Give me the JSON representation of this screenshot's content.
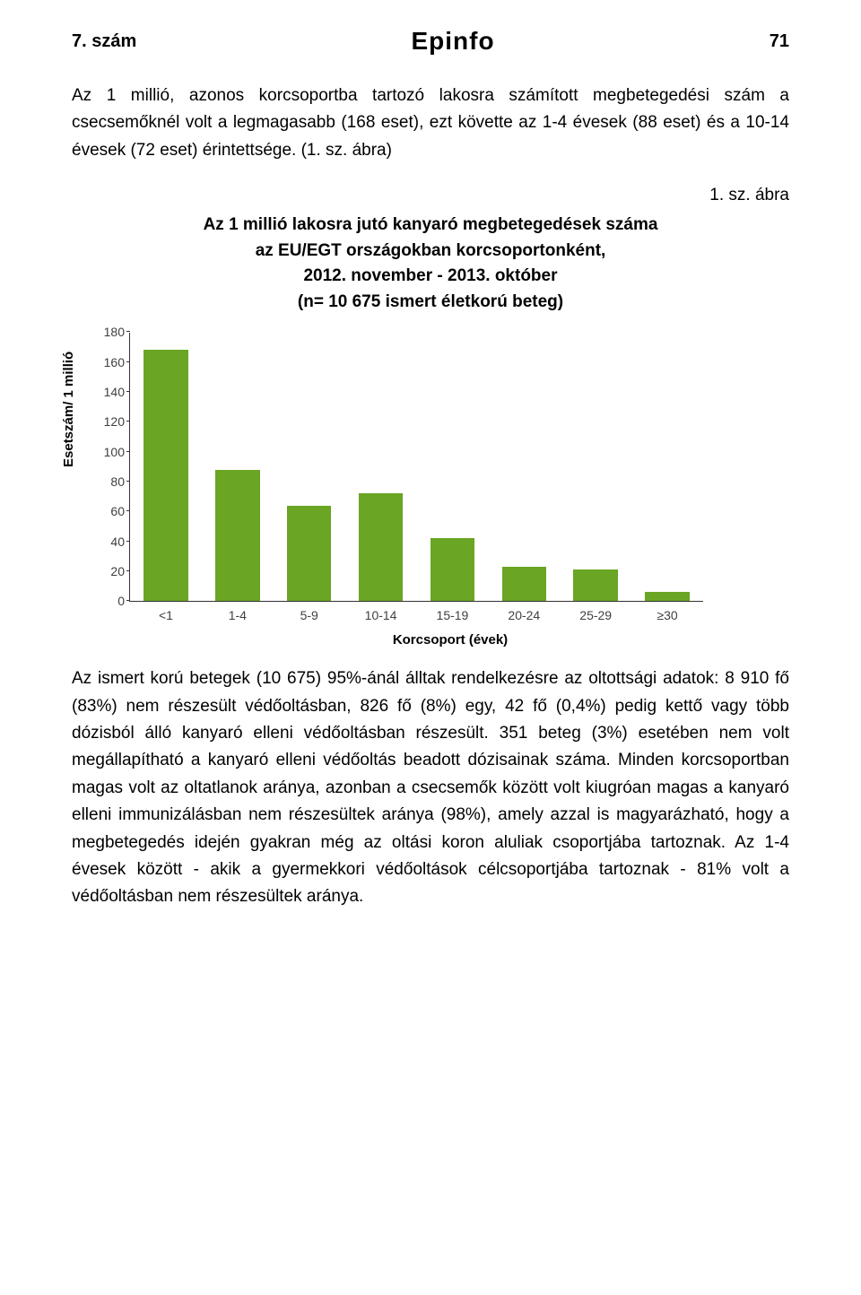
{
  "header": {
    "issue": "7. szám",
    "brand": "Epinfo",
    "page_number": "71"
  },
  "paragraph_top": "Az 1 millió, azonos korcsoportba tartozó lakosra számított megbetegedési szám a csecsemőknél volt a legmagasabb (168 eset), ezt követte az 1-4 évesek (88 eset) és a 10-14 évesek (72 eset) érintettsége. (1. sz. ábra)",
  "figure": {
    "ref": "1. sz. ábra",
    "title_line1": "Az 1 millió lakosra jutó kanyaró megbetegedések száma",
    "title_line2": "az EU/EGT országokban korcsoportonként,",
    "title_line3": "2012. november - 2013. október",
    "title_line4": "(n= 10 675 ismert életkorú beteg)"
  },
  "chart": {
    "type": "bar",
    "ylabel": "Esetszám/ 1 millió",
    "xlabel": "Korcsoport (évek)",
    "ylim_max": 180,
    "ytick_step": 20,
    "yticks": [
      0,
      20,
      40,
      60,
      80,
      100,
      120,
      140,
      160,
      180
    ],
    "categories": [
      "<1",
      "1-4",
      "5-9",
      "10-14",
      "15-19",
      "20-24",
      "25-29",
      "≥30"
    ],
    "values": [
      168,
      88,
      64,
      72,
      42,
      23,
      21,
      6
    ],
    "bar_color": "#6aa524",
    "axis_color": "#333333",
    "tick_color": "#404040",
    "background_color": "#ffffff",
    "bar_width": 0.62,
    "title_fontsize": 19,
    "label_fontsize": 15,
    "tick_fontsize": 14
  },
  "paragraph_bottom": "Az ismert korú betegek (10 675) 95%-ánál álltak rendelkezésre az oltottsági adatok: 8 910 fő (83%) nem részesült védőoltásban, 826 fő (8%) egy, 42 fő (0,4%) pedig kettő vagy több dózisból álló kanyaró elleni védőoltásban részesült. 351 beteg (3%) esetében nem volt megállapítható a kanyaró elleni védőoltás beadott dózisainak száma. Minden korcsoportban magas volt az oltatlanok aránya, azonban a csecsemők között volt kiugróan magas a kanyaró elleni immunizálásban nem részesültek aránya (98%), amely azzal is magyarázható, hogy a megbetegedés idején gyakran még az oltási koron aluliak csoportjába tartoznak. Az 1-4 évesek között - akik a gyermekkori védőoltások célcsoportjába tartoznak - 81% volt a védőoltásban nem részesültek aránya."
}
